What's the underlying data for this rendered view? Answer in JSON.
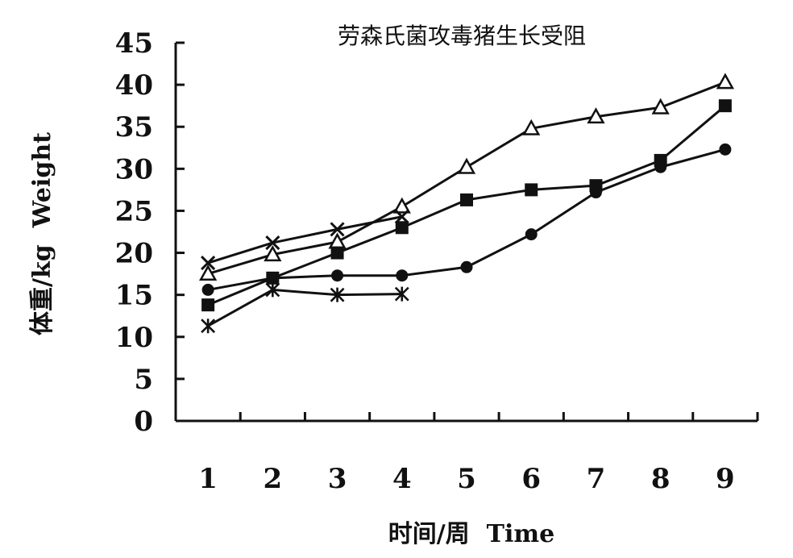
{
  "chart_data": {
    "type": "line",
    "title": "劳森氏菌攻毒猪生长受阻",
    "xlabel": "时间/周  Time",
    "ylabel": "体重/kg  Weight",
    "x": [
      1,
      2,
      3,
      4,
      5,
      6,
      7,
      8,
      9
    ],
    "x_tick_labels": [
      "1",
      "2",
      "3",
      "4",
      "5",
      "6",
      "7",
      "8",
      "9"
    ],
    "y_ticks": [
      "0",
      "5",
      "10",
      "15",
      "20",
      "25",
      "30",
      "35",
      "40",
      "45"
    ],
    "ylim": [
      0,
      45
    ],
    "xlim": [
      0.5,
      9.5
    ],
    "grid": false,
    "legend": "none",
    "series": [
      {
        "marker": "triangle-open",
        "color": "#111111",
        "values": [
          17.5,
          19.8,
          21.3,
          25.5,
          30.2,
          34.8,
          36.2,
          37.3,
          40.3
        ]
      },
      {
        "marker": "square-filled",
        "color": "#111111",
        "values": [
          13.8,
          17.0,
          20.0,
          23.0,
          26.3,
          27.5,
          28.0,
          31.0,
          37.5
        ]
      },
      {
        "marker": "circle-filled",
        "color": "#111111",
        "values": [
          15.6,
          17.0,
          17.3,
          17.3,
          18.3,
          22.2,
          27.2,
          30.2,
          32.3
        ]
      },
      {
        "marker": "x",
        "color": "#111111",
        "values": [
          18.8,
          21.2,
          22.8,
          24.3,
          null,
          null,
          null,
          null,
          null
        ]
      },
      {
        "marker": "star",
        "color": "#111111",
        "values": [
          11.3,
          15.6,
          15.0,
          15.1,
          null,
          null,
          null,
          null,
          null
        ]
      }
    ]
  }
}
